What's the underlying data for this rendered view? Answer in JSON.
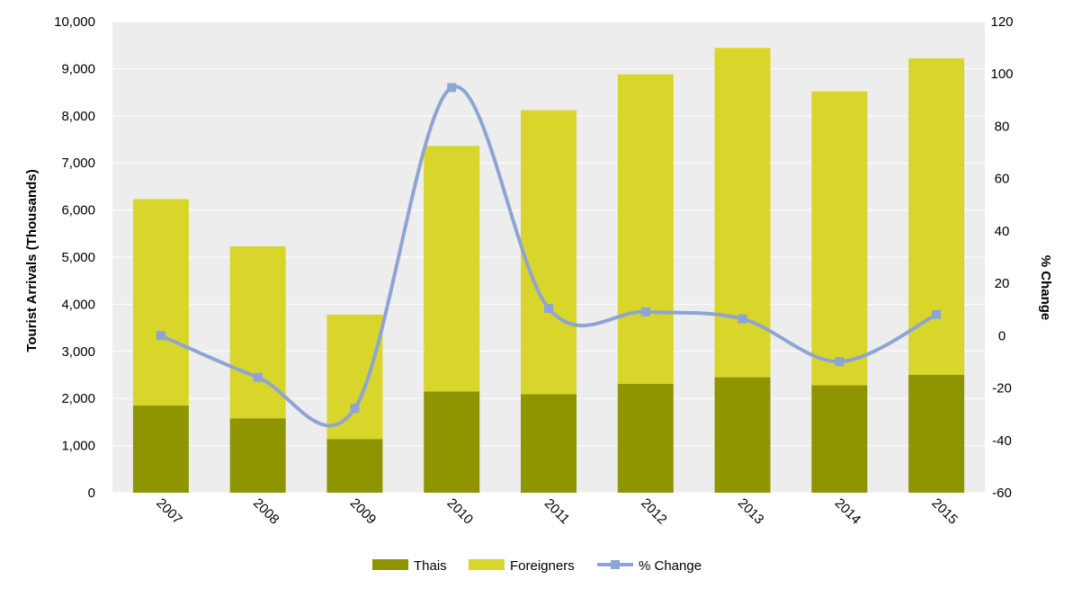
{
  "chart_data": {
    "type": "bar",
    "stacked": true,
    "categories": [
      "2007",
      "2008",
      "2009",
      "2010",
      "2011",
      "2012",
      "2013",
      "2014",
      "2015"
    ],
    "series": [
      {
        "name": "Thais",
        "type": "bar",
        "axis": "left",
        "color": "#8f9500",
        "values": [
          1850,
          1580,
          1140,
          2150,
          2090,
          2310,
          2450,
          2280,
          2500
        ]
      },
      {
        "name": "Foreigners",
        "type": "bar",
        "axis": "left",
        "color": "#d8d52b",
        "values": [
          4380,
          3650,
          2640,
          5210,
          6030,
          6570,
          6990,
          6240,
          6720
        ]
      },
      {
        "name": "% Change",
        "type": "line",
        "axis": "right",
        "color": "#8ea5d4",
        "marker": "square",
        "smooth": true,
        "values": [
          0,
          -15.9,
          -27.8,
          94.8,
          10.4,
          9.1,
          6.4,
          -9.9,
          8.1
        ]
      }
    ],
    "ylabel": "Tourist Arrivals (Thousands)",
    "y2label": "% Change",
    "ylim": [
      0,
      10000
    ],
    "y2lim": [
      -60,
      120
    ],
    "yticks": [
      "0",
      "1,000",
      "2,000",
      "3,000",
      "4,000",
      "5,000",
      "6,000",
      "7,000",
      "8,000",
      "9,000",
      "10,000"
    ],
    "y2ticks": [
      "-60",
      "-40",
      "-20",
      "0",
      "20",
      "40",
      "60",
      "80",
      "100",
      "120"
    ],
    "plot_background": "#ededed",
    "legend_position": "bottom"
  }
}
